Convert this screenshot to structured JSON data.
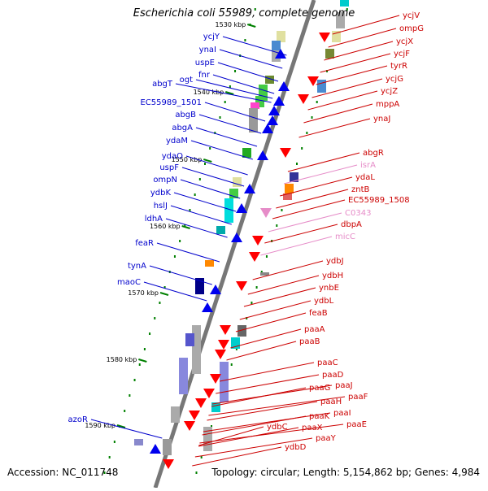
{
  "title": "Escherichia coli 55989, complete genome",
  "footer": {
    "accession": "Accession: NC_011748",
    "summary": "Topology: circular; Length: 5,154,862 bp; Genes: 4,984"
  },
  "colors": {
    "backbone": "#777777",
    "left_label": "#0000cc",
    "right_label": "#cc0000",
    "ncrna_label": "#e68cc8",
    "tick": "#008000"
  },
  "scale_ticks": [
    "1530 kbp",
    "1540 kbp",
    "1550 kbp",
    "1560 kbp",
    "1570 kbp",
    "1580 kbp",
    "1590 kbp"
  ],
  "left_labels": [
    "ycjY",
    "ynaI",
    "uspE",
    "fnr",
    "ogt",
    "abgT",
    "EC55989_1501",
    "abgB",
    "abgA",
    "ydaM",
    "ydaO",
    "uspF",
    "ompN",
    "ydbK",
    "hslJ",
    "ldhA",
    "feaR",
    "tynA",
    "maoC",
    "azoR"
  ],
  "right_labels": [
    "ycjV",
    "ompG",
    "ycjX",
    "ycjF",
    "tyrR",
    "ycjG",
    "ycjZ",
    "mppA",
    "ynaJ",
    "abgR",
    "isrA",
    "ydaL",
    "zntB",
    "EC55989_1508",
    "C0343",
    "dbpA",
    "micC",
    "ydbJ",
    "ydbH",
    "ynbE",
    "ydbL",
    "feaB",
    "paaA",
    "paaB",
    "paaC",
    "paaD",
    "paaJ",
    "paaG",
    "paaF",
    "paaH",
    "paaI",
    "paaK",
    "paaE",
    "ydbC",
    "paaX",
    "paaY",
    "ydbD"
  ]
}
